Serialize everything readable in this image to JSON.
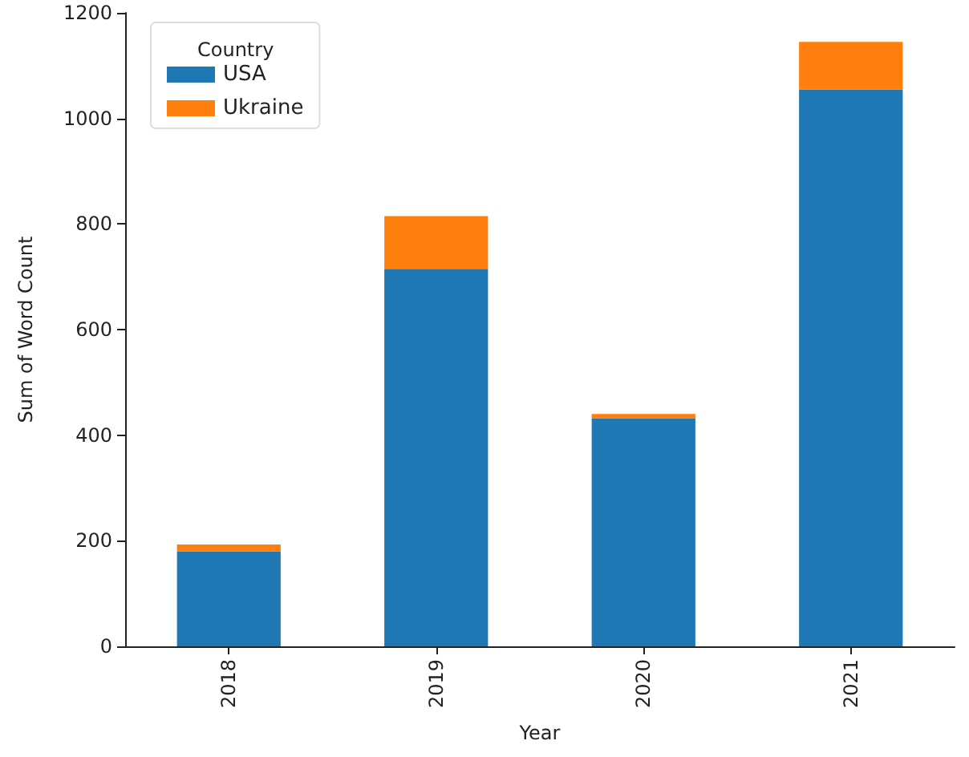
{
  "chart_data": {
    "type": "bar",
    "stacked": true,
    "xlabel": "Year",
    "ylabel": "Sum of Word Count",
    "legend_title": "Country",
    "legend": "top left",
    "categories": [
      "2018",
      "2019",
      "2020",
      "2021"
    ],
    "series": [
      {
        "name": "USA",
        "color": "#1f77b4",
        "values": [
          180,
          715,
          432,
          1055
        ]
      },
      {
        "name": "Ukraine",
        "color": "#ff7f0e",
        "values": [
          13,
          100,
          8,
          90
        ]
      }
    ],
    "ylim": [
      0,
      1200
    ],
    "yticks": [
      0,
      200,
      400,
      600,
      800,
      1000,
      1200
    ],
    "grid": false
  }
}
